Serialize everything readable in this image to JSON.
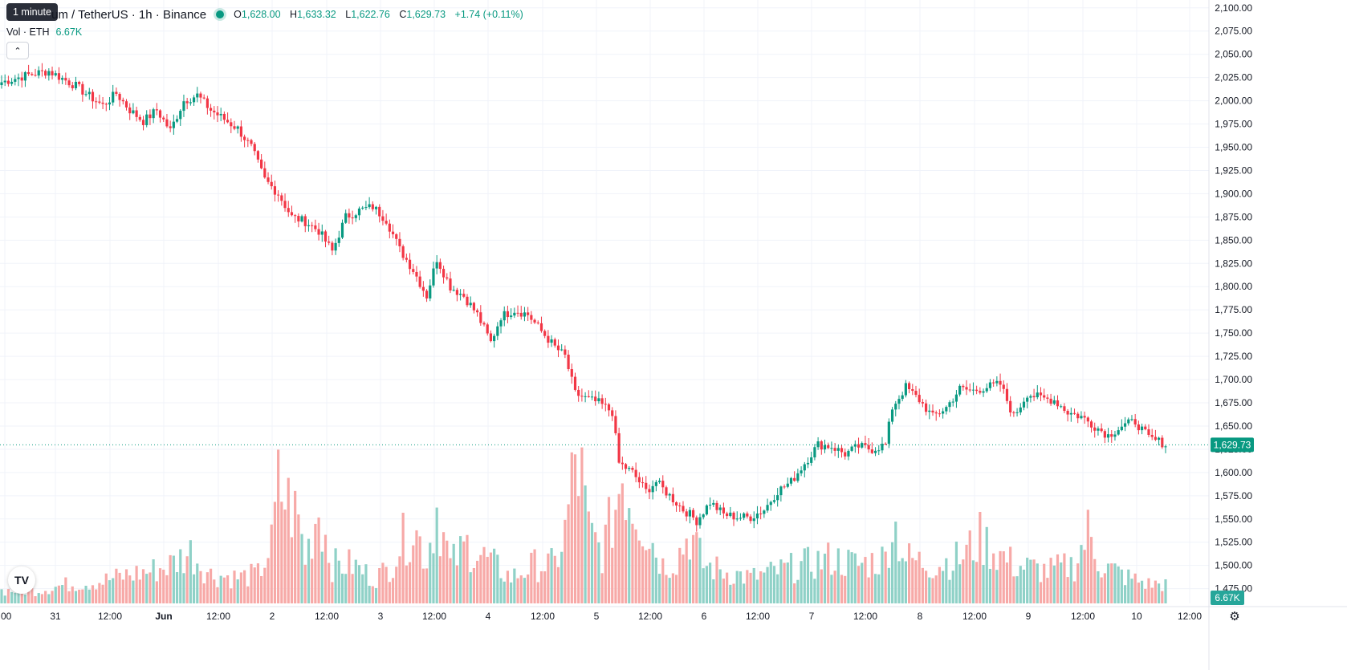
{
  "header": {
    "tooltip": "1 minute",
    "symbol": "um / TetherUS · 1h · Binance",
    "ohlc": {
      "o_label": "O",
      "o": "1,628.00",
      "h_label": "H",
      "h": "1,633.32",
      "l_label": "L",
      "l": "1,622.76",
      "c_label": "C",
      "c": "1,629.73",
      "change": "+1.74 (+0.11%)"
    },
    "volume_label": "Vol · ETH",
    "volume_value": "6.67K",
    "collapse_icon": "chevron-up-icon"
  },
  "logo_text": "TV",
  "settings_icon": "gear-icon",
  "colors": {
    "up": "#089981",
    "down": "#f23645",
    "vol_up": "#8fd1c7",
    "vol_down": "#f7a9a7",
    "grid": "#f0f3fa"
  },
  "chart_data": {
    "type": "candlestick",
    "timeframe": "1h",
    "y_axis": {
      "range": [
        1460,
        2105
      ],
      "ticks": [
        "2,100.00",
        "2,075.00",
        "2,050.00",
        "2,025.00",
        "2,000.00",
        "1,975.00",
        "1,950.00",
        "1,925.00",
        "1,900.00",
        "1,875.00",
        "1,850.00",
        "1,825.00",
        "1,800.00",
        "1,775.00",
        "1,750.00",
        "1,725.00",
        "1,700.00",
        "1,675.00",
        "1,650.00",
        "1,625.00",
        "1,600.00",
        "1,575.00",
        "1,550.00",
        "1,525.00",
        "1,500.00",
        "1,475.00"
      ]
    },
    "x_axis": {
      "ticks": [
        ":00",
        "31",
        "12:00",
        "Jun",
        "12:00",
        "2",
        "12:00",
        "3",
        "12:00",
        "4",
        "12:00",
        "5",
        "12:00",
        "6",
        "12:00",
        "7",
        "12:00",
        "8",
        "12:00",
        "9",
        "12:00",
        "10",
        "12:00"
      ]
    },
    "last_price": {
      "value": 1629.73,
      "label": "1,629.73"
    },
    "last_volume_label": "6.67K",
    "close_keypoints": [
      [
        0,
        2020
      ],
      [
        8,
        2028
      ],
      [
        14,
        2032
      ],
      [
        18,
        2024
      ],
      [
        22,
        2016
      ],
      [
        26,
        2005
      ],
      [
        30,
        1995
      ],
      [
        34,
        2008
      ],
      [
        38,
        1990
      ],
      [
        42,
        1978
      ],
      [
        46,
        1990
      ],
      [
        50,
        1968
      ],
      [
        54,
        2000
      ],
      [
        58,
        2006
      ],
      [
        62,
        1990
      ],
      [
        66,
        1980
      ],
      [
        70,
        1970
      ],
      [
        74,
        1950
      ],
      [
        78,
        1915
      ],
      [
        82,
        1900
      ],
      [
        86,
        1875
      ],
      [
        90,
        1870
      ],
      [
        94,
        1860
      ],
      [
        98,
        1838
      ],
      [
        102,
        1875
      ],
      [
        106,
        1882
      ],
      [
        110,
        1886
      ],
      [
        114,
        1872
      ],
      [
        118,
        1840
      ],
      [
        122,
        1818
      ],
      [
        126,
        1790
      ],
      [
        129,
        1830
      ],
      [
        133,
        1800
      ],
      [
        137,
        1790
      ],
      [
        141,
        1770
      ],
      [
        145,
        1740
      ],
      [
        148,
        1768
      ],
      [
        152,
        1775
      ],
      [
        156,
        1770
      ],
      [
        160,
        1752
      ],
      [
        164,
        1735
      ],
      [
        167,
        1725
      ],
      [
        170,
        1685
      ],
      [
        173,
        1680
      ],
      [
        177,
        1675
      ],
      [
        181,
        1665
      ],
      [
        183,
        1610
      ],
      [
        187,
        1600
      ],
      [
        191,
        1580
      ],
      [
        194,
        1590
      ],
      [
        198,
        1575
      ],
      [
        202,
        1560
      ],
      [
        204,
        1555
      ],
      [
        206,
        1548
      ],
      [
        210,
        1568
      ],
      [
        214,
        1555
      ],
      [
        218,
        1552
      ],
      [
        222,
        1552
      ],
      [
        226,
        1560
      ],
      [
        230,
        1580
      ],
      [
        234,
        1590
      ],
      [
        238,
        1610
      ],
      [
        242,
        1630
      ],
      [
        246,
        1628
      ],
      [
        250,
        1620
      ],
      [
        254,
        1628
      ],
      [
        258,
        1625
      ],
      [
        262,
        1630
      ],
      [
        264,
        1670
      ],
      [
        268,
        1692
      ],
      [
        272,
        1678
      ],
      [
        276,
        1660
      ],
      [
        280,
        1670
      ],
      [
        284,
        1690
      ],
      [
        288,
        1688
      ],
      [
        292,
        1692
      ],
      [
        296,
        1695
      ],
      [
        300,
        1660
      ],
      [
        304,
        1685
      ],
      [
        308,
        1680
      ],
      [
        312,
        1678
      ],
      [
        316,
        1665
      ],
      [
        320,
        1660
      ],
      [
        324,
        1650
      ],
      [
        328,
        1640
      ],
      [
        332,
        1650
      ],
      [
        336,
        1655
      ],
      [
        340,
        1637
      ],
      [
        344,
        1632
      ],
      [
        345,
        1630
      ]
    ],
    "volume_keypoints": [
      [
        0,
        4
      ],
      [
        10,
        4
      ],
      [
        20,
        6
      ],
      [
        30,
        7
      ],
      [
        38,
        9
      ],
      [
        44,
        10
      ],
      [
        50,
        12
      ],
      [
        56,
        16
      ],
      [
        62,
        9
      ],
      [
        70,
        8
      ],
      [
        76,
        9
      ],
      [
        80,
        18
      ],
      [
        82,
        36
      ],
      [
        88,
        26
      ],
      [
        90,
        14
      ],
      [
        94,
        30
      ],
      [
        98,
        12
      ],
      [
        104,
        12
      ],
      [
        110,
        8
      ],
      [
        114,
        10
      ],
      [
        118,
        18
      ],
      [
        122,
        24
      ],
      [
        126,
        14
      ],
      [
        129,
        30
      ],
      [
        133,
        12
      ],
      [
        138,
        18
      ],
      [
        146,
        12
      ],
      [
        151,
        8
      ],
      [
        158,
        12
      ],
      [
        164,
        12
      ],
      [
        167,
        22
      ],
      [
        170,
        44
      ],
      [
        172,
        38
      ],
      [
        174,
        22
      ],
      [
        178,
        16
      ],
      [
        182,
        30
      ],
      [
        184,
        42
      ],
      [
        186,
        34
      ],
      [
        190,
        26
      ],
      [
        196,
        12
      ],
      [
        200,
        14
      ],
      [
        204,
        22
      ],
      [
        208,
        12
      ],
      [
        214,
        10
      ],
      [
        222,
        8
      ],
      [
        230,
        10
      ],
      [
        238,
        12
      ],
      [
        246,
        14
      ],
      [
        254,
        12
      ],
      [
        262,
        14
      ],
      [
        264,
        26
      ],
      [
        268,
        14
      ],
      [
        276,
        12
      ],
      [
        284,
        14
      ],
      [
        290,
        20
      ],
      [
        300,
        12
      ],
      [
        310,
        10
      ],
      [
        318,
        12
      ],
      [
        322,
        22
      ],
      [
        326,
        12
      ],
      [
        334,
        8
      ],
      [
        340,
        6
      ],
      [
        345,
        6
      ]
    ],
    "volume_range": [
      0,
      48
    ],
    "candle_count": 346
  }
}
